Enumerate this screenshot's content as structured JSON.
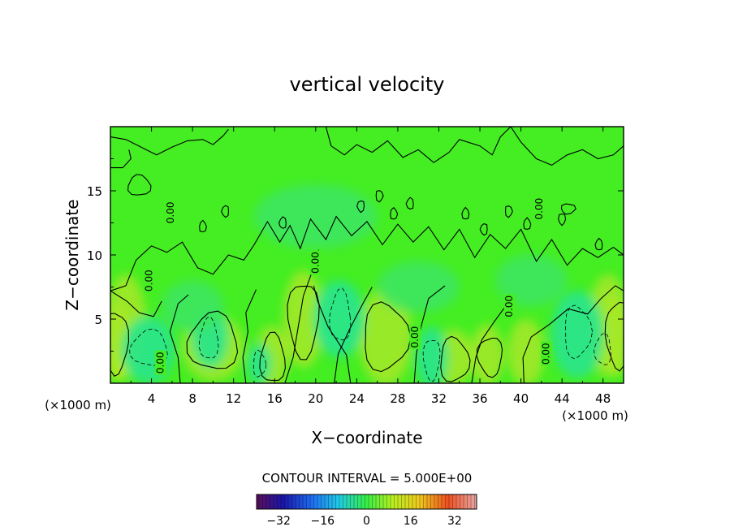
{
  "chart_data": {
    "type": "heatmap",
    "title": "vertical velocity",
    "xlabel": "X−coordinate",
    "ylabel": "Z−coordinate",
    "x_unit_left": "(×1000 m)",
    "x_unit_right": "(×1000 m)",
    "xlim": [
      0,
      50
    ],
    "ylim": [
      0,
      20
    ],
    "x_ticks": [
      4,
      8,
      12,
      16,
      20,
      24,
      28,
      32,
      36,
      40,
      44,
      48
    ],
    "y_ticks": [
      5,
      10,
      15
    ],
    "contour_interval_text": "CONTOUR INTERVAL = 5.000E+00",
    "contour_labels": [
      {
        "text": "0.00",
        "x": 20.0,
        "z": 9.4
      },
      {
        "text": "0.00",
        "x": 29.7,
        "z": 3.6
      },
      {
        "text": "0.00",
        "x": 42.5,
        "z": 2.3
      },
      {
        "text": "0.00",
        "x": 4.9,
        "z": 1.6
      },
      {
        "text": "0.00",
        "x": 38.9,
        "z": 6.0
      },
      {
        "text": "0.00",
        "x": 41.8,
        "z": 13.6
      },
      {
        "text": "0.00",
        "x": 5.9,
        "z": 13.3
      },
      {
        "text": "0.00",
        "x": 3.8,
        "z": 8.0
      }
    ],
    "colorbar": {
      "range": [
        -40,
        40
      ],
      "tick_values": [
        -32,
        -16,
        0,
        16,
        32
      ],
      "tick_labels": [
        "−32",
        "−16",
        "0",
        "16",
        "32"
      ]
    },
    "colors": {
      "background": "#44ee22",
      "positive_strong": "#d8e81a",
      "positive_mid": "#a2e829",
      "negative_mid": "#27e48e",
      "negative_light": "#3de660",
      "contour": "#000000"
    }
  }
}
